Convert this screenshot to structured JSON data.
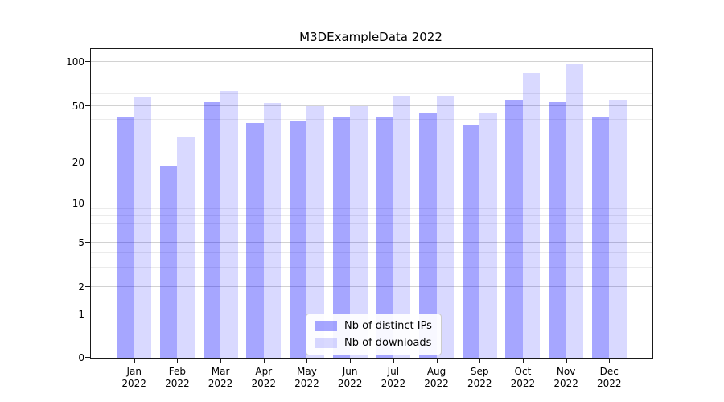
{
  "title": "M3DExampleData 2022",
  "colors": {
    "bar_ips": "rgba(0,0,255,0.35)",
    "bar_downloads": "rgba(0,0,255,0.15)",
    "grid_major": "#d2d2d2",
    "grid_minor": "#ebebeb",
    "spine": "#1a1a1a",
    "text": "#000000"
  },
  "legend": {
    "items": [
      {
        "label": "Nb of distinct IPs",
        "key": "ips"
      },
      {
        "label": "Nb of downloads",
        "key": "downloads"
      }
    ]
  },
  "axes": {
    "y_major_tick_labels": [
      "0",
      "1",
      "2",
      "5",
      "10",
      "20",
      "50",
      "100"
    ],
    "x_tick_year_line": "2022"
  },
  "chart_data": {
    "type": "bar",
    "title": "M3DExampleData 2022",
    "xlabel": "",
    "ylabel": "",
    "yscale": "symlog",
    "grid": "on",
    "legend_position": "lower center",
    "categories": [
      "Jan 2022",
      "Feb 2022",
      "Mar 2022",
      "Apr 2022",
      "May 2022",
      "Jun 2022",
      "Jul 2022",
      "Aug 2022",
      "Sep 2022",
      "Oct 2022",
      "Nov 2022",
      "Dec 2022"
    ],
    "month_labels": [
      "Jan",
      "Feb",
      "Mar",
      "Apr",
      "May",
      "Jun",
      "Jul",
      "Aug",
      "Sep",
      "Oct",
      "Nov",
      "Dec"
    ],
    "series": [
      {
        "key": "ips",
        "name": "Nb of distinct IPs",
        "values": [
          42,
          19,
          53,
          38,
          39,
          42,
          42,
          44,
          37,
          55,
          53,
          42
        ]
      },
      {
        "key": "downloads",
        "name": "Nb of downloads",
        "values": [
          57,
          30,
          63,
          52,
          50,
          50,
          59,
          59,
          44,
          84,
          97,
          54
        ]
      }
    ],
    "y_major_ticks": [
      0,
      1,
      2,
      5,
      10,
      20,
      50,
      100
    ],
    "y_minor_ticks": [
      3,
      4,
      6,
      7,
      8,
      9,
      30,
      40,
      60,
      70,
      80,
      90
    ],
    "y_anchor_fractions": [
      [
        0,
        0.0
      ],
      [
        1,
        0.1406
      ],
      [
        2,
        0.2292
      ],
      [
        5,
        0.3724
      ],
      [
        10,
        0.5
      ],
      [
        20,
        0.6328
      ],
      [
        50,
        0.8164
      ],
      [
        100,
        0.9583
      ]
    ],
    "ylim_top_value": 120
  }
}
